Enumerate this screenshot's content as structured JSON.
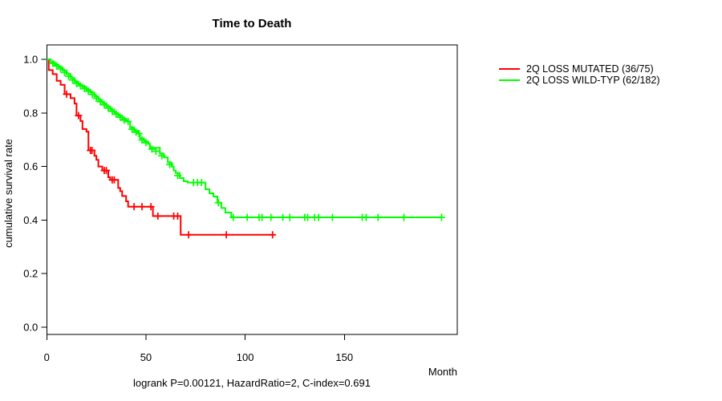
{
  "chart_data": {
    "type": "line",
    "subtype": "kaplan-meier-step",
    "title": "Time to Death",
    "xlabel": "Month",
    "ylabel": "cumulative survival rate",
    "annotation": "logrank P=0.00121, HazardRatio=2, C-index=0.691",
    "xlim": [
      0,
      207
    ],
    "ylim": [
      0,
      1
    ],
    "xticks": [
      "0",
      "50",
      "100",
      "150"
    ],
    "yticks": [
      "0.0",
      "0.2",
      "0.4",
      "0.6",
      "0.8",
      "1.0"
    ],
    "grid": false,
    "legend_position": "right-outside",
    "axis_color": "#000000",
    "series": [
      {
        "name": "2Q LOSS MUTATED (36/75)",
        "color": "#ff0000",
        "steps": [
          [
            0,
            1.0
          ],
          [
            1,
            0.96
          ],
          [
            3,
            0.945
          ],
          [
            5,
            0.92
          ],
          [
            7,
            0.905
          ],
          [
            9,
            0.87
          ],
          [
            12,
            0.855
          ],
          [
            14,
            0.835
          ],
          [
            15,
            0.79
          ],
          [
            17,
            0.77
          ],
          [
            18,
            0.74
          ],
          [
            20,
            0.73
          ],
          [
            21,
            0.66
          ],
          [
            24,
            0.64
          ],
          [
            25,
            0.625
          ],
          [
            26,
            0.6
          ],
          [
            28,
            0.585
          ],
          [
            31,
            0.56
          ],
          [
            32,
            0.55
          ],
          [
            36,
            0.52
          ],
          [
            37,
            0.508
          ],
          [
            38,
            0.49
          ],
          [
            40,
            0.47
          ],
          [
            41,
            0.45
          ],
          [
            53.5,
            0.415
          ],
          [
            67.5,
            0.345
          ],
          [
            114.7,
            0.345
          ]
        ],
        "censors": [
          [
            10,
            0.87
          ],
          [
            16,
            0.79
          ],
          [
            22,
            0.66
          ],
          [
            22.8,
            0.66
          ],
          [
            29,
            0.585
          ],
          [
            30,
            0.585
          ],
          [
            33,
            0.55
          ],
          [
            34,
            0.55
          ],
          [
            44,
            0.45
          ],
          [
            48,
            0.45
          ],
          [
            52.5,
            0.45
          ],
          [
            56,
            0.415
          ],
          [
            64,
            0.415
          ],
          [
            66,
            0.415
          ],
          [
            71.5,
            0.345
          ],
          [
            90.5,
            0.345
          ],
          [
            113.8,
            0.345
          ]
        ]
      },
      {
        "name": "2Q LOSS WILD-TYP (62/182)",
        "color": "#00ff00",
        "steps": [
          [
            0,
            1.0
          ],
          [
            2,
            0.99
          ],
          [
            4,
            0.98
          ],
          [
            6,
            0.97
          ],
          [
            8,
            0.958
          ],
          [
            10,
            0.945
          ],
          [
            12,
            0.93
          ],
          [
            14,
            0.916
          ],
          [
            16,
            0.905
          ],
          [
            18,
            0.897
          ],
          [
            20,
            0.886
          ],
          [
            22,
            0.876
          ],
          [
            24,
            0.862
          ],
          [
            26,
            0.848
          ],
          [
            28,
            0.836
          ],
          [
            30,
            0.824
          ],
          [
            32,
            0.812
          ],
          [
            34,
            0.8
          ],
          [
            36,
            0.79
          ],
          [
            38,
            0.778
          ],
          [
            40,
            0.768
          ],
          [
            42,
            0.745
          ],
          [
            44,
            0.733
          ],
          [
            46,
            0.723
          ],
          [
            47,
            0.705
          ],
          [
            49,
            0.694
          ],
          [
            51,
            0.684
          ],
          [
            52,
            0.67
          ],
          [
            57,
            0.648
          ],
          [
            59,
            0.634
          ],
          [
            61,
            0.615
          ],
          [
            63,
            0.6
          ],
          [
            64,
            0.585
          ],
          [
            65,
            0.576
          ],
          [
            67,
            0.557
          ],
          [
            69,
            0.545
          ],
          [
            71,
            0.54
          ],
          [
            80,
            0.515
          ],
          [
            82,
            0.5
          ],
          [
            84,
            0.488
          ],
          [
            86,
            0.465
          ],
          [
            88,
            0.445
          ],
          [
            90,
            0.428
          ],
          [
            93,
            0.41
          ],
          [
            199,
            0.41
          ]
        ],
        "censors": [
          [
            3,
            0.985
          ],
          [
            5,
            0.975
          ],
          [
            7,
            0.964
          ],
          [
            9,
            0.951
          ],
          [
            11,
            0.937
          ],
          [
            13,
            0.923
          ],
          [
            15,
            0.91
          ],
          [
            17,
            0.901
          ],
          [
            19,
            0.891
          ],
          [
            21,
            0.881
          ],
          [
            23,
            0.869
          ],
          [
            25,
            0.855
          ],
          [
            27,
            0.842
          ],
          [
            29,
            0.83
          ],
          [
            31,
            0.818
          ],
          [
            33,
            0.806
          ],
          [
            35,
            0.795
          ],
          [
            37,
            0.784
          ],
          [
            39,
            0.773
          ],
          [
            41,
            0.768
          ],
          [
            43,
            0.739
          ],
          [
            45,
            0.728
          ],
          [
            46.5,
            0.723
          ],
          [
            48,
            0.699
          ],
          [
            50,
            0.689
          ],
          [
            53,
            0.665
          ],
          [
            55,
            0.657
          ],
          [
            58,
            0.64
          ],
          [
            62,
            0.607
          ],
          [
            66,
            0.566
          ],
          [
            74,
            0.54
          ],
          [
            76,
            0.54
          ],
          [
            78,
            0.54
          ],
          [
            86.5,
            0.465
          ],
          [
            94,
            0.41
          ],
          [
            101,
            0.41
          ],
          [
            107,
            0.41
          ],
          [
            108.5,
            0.41
          ],
          [
            113,
            0.41
          ],
          [
            119,
            0.41
          ],
          [
            122.5,
            0.41
          ],
          [
            130,
            0.41
          ],
          [
            131.5,
            0.41
          ],
          [
            135,
            0.41
          ],
          [
            137,
            0.41
          ],
          [
            144,
            0.41
          ],
          [
            159,
            0.41
          ],
          [
            161,
            0.41
          ],
          [
            167,
            0.41
          ],
          [
            180,
            0.41
          ],
          [
            199,
            0.41
          ]
        ]
      }
    ]
  }
}
